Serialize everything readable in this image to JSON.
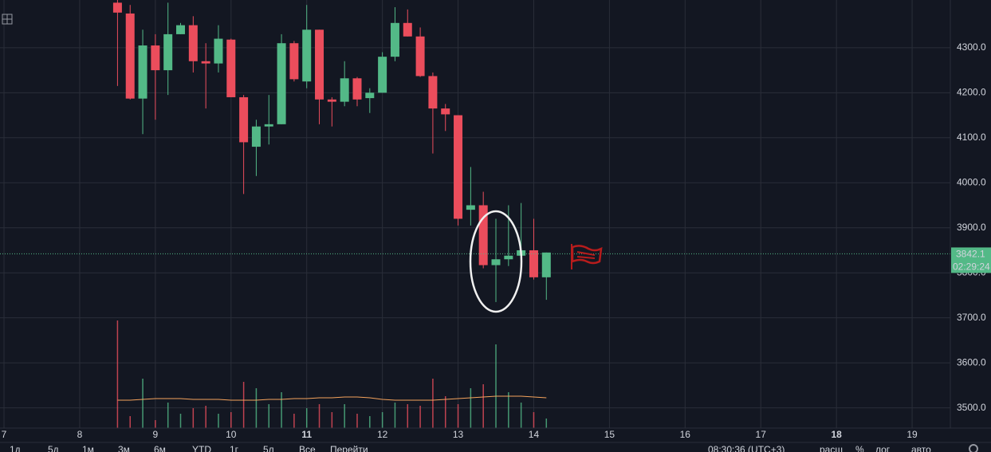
{
  "chart_data": {
    "type": "candlestick",
    "x": [
      8.5,
      8.6667,
      8.8333,
      9.0,
      9.1667,
      9.3333,
      9.5,
      9.6667,
      9.8333,
      10.0,
      10.1667,
      10.3333,
      10.5,
      10.6667,
      10.8333,
      11.0,
      11.1667,
      11.3333,
      11.5,
      11.6667,
      11.8333,
      12.0,
      12.1667,
      12.3333,
      12.5,
      12.6667,
      12.8333,
      13.0,
      13.1667,
      13.3333,
      13.5,
      13.6667,
      13.8333,
      14.0,
      14.1667
    ],
    "open": [
      4400,
      4376,
      4187,
      4305,
      4250,
      4330,
      4350,
      4270,
      4265,
      4318,
      4190,
      4080,
      4125,
      4130,
      4310,
      4225,
      4340,
      4185,
      4180,
      4232,
      4188,
      4200,
      4280,
      4355,
      4325,
      4237,
      4165,
      4150,
      3940,
      3950,
      3817,
      3830,
      3838,
      3850,
      3790
    ],
    "high": [
      4406,
      4395,
      4340,
      4330,
      4400,
      4355,
      4370,
      4310,
      4350,
      4320,
      4195,
      4140,
      4195,
      4330,
      4315,
      4395,
      4340,
      4190,
      4270,
      4235,
      4210,
      4290,
      4390,
      4385,
      4345,
      4245,
      4175,
      4150,
      4035,
      3980,
      3920,
      3950,
      3955,
      3920,
      3845
    ],
    "low": [
      4215,
      4185,
      4108,
      4140,
      4195,
      4330,
      4245,
      4165,
      4245,
      4190,
      3975,
      4015,
      4085,
      4130,
      4225,
      4210,
      4130,
      4125,
      4170,
      4170,
      4155,
      4200,
      4270,
      4325,
      4235,
      4065,
      4115,
      3905,
      3905,
      3810,
      3735,
      3815,
      3838,
      3785,
      3740
    ],
    "close": [
      4378,
      4187,
      4305,
      4250,
      4330,
      4350,
      4270,
      4265,
      4320,
      4190,
      4090,
      4125,
      4130,
      4310,
      4230,
      4340,
      4185,
      4180,
      4232,
      4185,
      4200,
      4280,
      4355,
      4325,
      4237,
      4165,
      4152,
      3920,
      3950,
      3817,
      3830,
      3838,
      3850,
      3790,
      3845
    ],
    "volume": [
      135,
      15,
      62,
      10,
      32,
      18,
      25,
      28,
      18,
      20,
      58,
      50,
      30,
      45,
      18,
      25,
      30,
      20,
      30,
      18,
      15,
      20,
      32,
      30,
      28,
      62,
      40,
      30,
      50,
      55,
      105,
      45,
      32,
      20,
      12
    ],
    "volume_ma": [
      35,
      35,
      36,
      37,
      37,
      37,
      36,
      36,
      36,
      35,
      35,
      35,
      36,
      36,
      37,
      37,
      38,
      38,
      39,
      39,
      38,
      36,
      35,
      35,
      35,
      35,
      36,
      37,
      38,
      39,
      40,
      40,
      40,
      39,
      38
    ],
    "up_color": "#53b987",
    "down_color": "#eb4d5c",
    "ma_color": "#f5a35c",
    "xlim": [
      6.947,
      19.505
    ],
    "xticks": [
      7,
      8,
      9,
      10,
      11,
      12,
      13,
      14,
      15,
      16,
      17,
      18,
      19
    ],
    "ylim": [
      3455,
      4406
    ],
    "yticks": [
      {
        "value": 3500,
        "label": "3500.0"
      },
      {
        "value": 3600,
        "label": "3600.0"
      },
      {
        "value": 3700,
        "label": "3700.0"
      },
      {
        "value": 3800,
        "label": "3800.0"
      },
      {
        "value": 3900,
        "label": "3900.0"
      },
      {
        "value": 4000,
        "label": "4000.0"
      },
      {
        "value": 4100,
        "label": "4100.0"
      },
      {
        "value": 4200,
        "label": "4200.0"
      },
      {
        "value": 4300,
        "label": "4300.0"
      }
    ],
    "grid": true,
    "last_price": 3842.1,
    "countdown": "02:29:24"
  },
  "toolbar": {
    "ranges": [
      "1д",
      "5д",
      "1м",
      "3м",
      "6м",
      "YTD",
      "1г",
      "5л",
      "Все"
    ],
    "goto": "Перейти",
    "clock": "08:30:36 (UTC+3)",
    "options": [
      "расш",
      "%",
      "лог",
      "авто"
    ]
  }
}
